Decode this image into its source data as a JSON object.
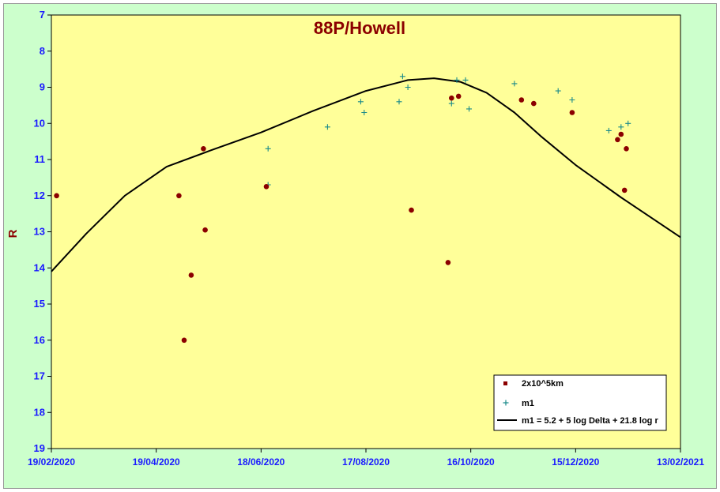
{
  "chart_data": {
    "type": "scatter",
    "title": "88P/Howell",
    "xlabel": "",
    "ylabel": "R",
    "x_type": "date",
    "xlim": [
      "2020-02-19",
      "2021-02-13"
    ],
    "ylim": [
      7,
      19
    ],
    "y_inverted": true,
    "x_ticks": [
      "19/02/2020",
      "19/04/2020",
      "18/06/2020",
      "17/08/2020",
      "16/10/2020",
      "15/12/2020",
      "13/02/2021"
    ],
    "y_ticks": [
      7,
      8,
      9,
      10,
      11,
      12,
      13,
      14,
      15,
      16,
      17,
      18,
      19
    ],
    "legend_position": "bottom-right",
    "colors": {
      "plot_bg": "#ffff99",
      "outer_bg": "#ccffcc",
      "coma_marker": "#8b0000",
      "m1_marker": "#1a8a8a",
      "curve": "#000000",
      "tick_text": "#1a1aff",
      "title": "#8b0000"
    },
    "series": [
      {
        "name": "2x10^5km",
        "marker": "dot",
        "points": [
          [
            "2020-02-22",
            12.0
          ],
          [
            "2020-05-02",
            12.0
          ],
          [
            "2020-05-05",
            16.0
          ],
          [
            "2020-05-09",
            14.2
          ],
          [
            "2020-05-16",
            10.7
          ],
          [
            "2020-05-17",
            12.95
          ],
          [
            "2020-06-21",
            11.75
          ],
          [
            "2020-09-12",
            12.4
          ],
          [
            "2020-10-03",
            13.85
          ],
          [
            "2020-10-05",
            9.3
          ],
          [
            "2020-10-09",
            9.25
          ],
          [
            "2020-11-14",
            9.35
          ],
          [
            "2020-11-21",
            9.45
          ],
          [
            "2020-12-13",
            9.7
          ],
          [
            "2021-01-08",
            10.45
          ],
          [
            "2021-01-10",
            10.3
          ],
          [
            "2021-01-12",
            11.85
          ],
          [
            "2021-01-13",
            10.7
          ]
        ]
      },
      {
        "name": "m1",
        "marker": "plus",
        "points": [
          [
            "2020-06-22",
            10.7
          ],
          [
            "2020-06-22",
            11.7
          ],
          [
            "2020-07-26",
            10.1
          ],
          [
            "2020-08-14",
            9.4
          ],
          [
            "2020-08-16",
            9.7
          ],
          [
            "2020-09-05",
            9.4
          ],
          [
            "2020-09-07",
            8.7
          ],
          [
            "2020-09-10",
            9.0
          ],
          [
            "2020-10-05",
            9.45
          ],
          [
            "2020-10-08",
            8.8
          ],
          [
            "2020-10-13",
            8.8
          ],
          [
            "2020-10-15",
            9.6
          ],
          [
            "2020-11-10",
            8.9
          ],
          [
            "2020-12-05",
            9.1
          ],
          [
            "2020-12-13",
            9.35
          ],
          [
            "2021-01-03",
            10.2
          ],
          [
            "2021-01-10",
            10.1
          ],
          [
            "2021-01-14",
            10.0
          ]
        ]
      },
      {
        "name": "m1 = 5.2 + 5 log Delta + 21.8 log r",
        "marker": "line",
        "points": [
          [
            "2020-02-19",
            14.1
          ],
          [
            "2020-03-10",
            13.05
          ],
          [
            "2020-04-01",
            12.0
          ],
          [
            "2020-04-25",
            11.2
          ],
          [
            "2020-05-20",
            10.75
          ],
          [
            "2020-06-18",
            10.25
          ],
          [
            "2020-07-18",
            9.65
          ],
          [
            "2020-08-17",
            9.1
          ],
          [
            "2020-09-10",
            8.8
          ],
          [
            "2020-09-25",
            8.75
          ],
          [
            "2020-10-10",
            8.85
          ],
          [
            "2020-10-25",
            9.15
          ],
          [
            "2020-11-10",
            9.7
          ],
          [
            "2020-11-25",
            10.35
          ],
          [
            "2020-12-15",
            11.15
          ],
          [
            "2021-01-10",
            12.05
          ],
          [
            "2021-02-13",
            13.15
          ]
        ]
      }
    ]
  }
}
